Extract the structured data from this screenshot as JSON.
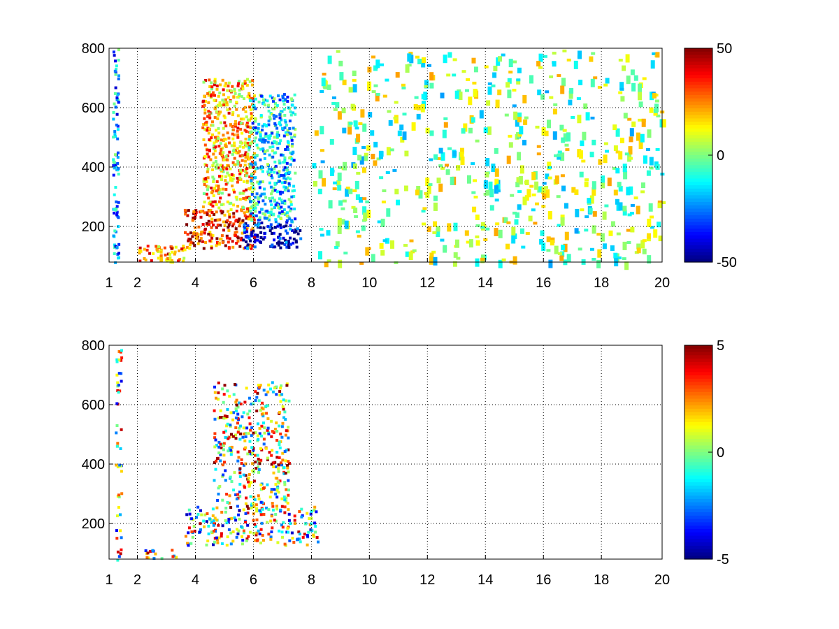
{
  "chart_data": [
    {
      "type": "heatmap",
      "title": "",
      "xlabel": "",
      "ylabel": "",
      "xlim": [
        1,
        20
      ],
      "ylim": [
        80,
        800
      ],
      "xticks": [
        1,
        2,
        4,
        6,
        8,
        10,
        12,
        14,
        16,
        18,
        20
      ],
      "xticklabels": [
        "1",
        "2",
        "4",
        "6",
        "8",
        "10",
        "12",
        "14",
        "16",
        "18",
        "20"
      ],
      "xscale": "log-like (1 and 2 compressed at left)",
      "yticks": [
        200,
        400,
        600,
        800
      ],
      "yticklabels": [
        "200",
        "400",
        "600",
        "800"
      ],
      "grid": true,
      "colormap": "jet",
      "clim": [
        -50,
        50
      ],
      "colorbar": {
        "ticks": [
          50,
          0,
          -50
        ],
        "ticklabels": [
          "50",
          "0",
          "-50"
        ]
      },
      "features": [
        {
          "x_range": [
            1.1,
            1.3
          ],
          "y_range": [
            80,
            800
          ],
          "value": -20,
          "note": "vertical cyan streaks"
        },
        {
          "x_range": [
            2.0,
            3.6
          ],
          "y_range": [
            80,
            140
          ],
          "value": 25,
          "note": "rising diagonal band"
        },
        {
          "x_range": [
            3.6,
            6.0
          ],
          "y_range": [
            130,
            260
          ],
          "value": 35,
          "note": "strong positive band"
        },
        {
          "x_range": [
            4.2,
            6.0
          ],
          "y_range": [
            250,
            700
          ],
          "value": 20,
          "note": "positive lobe"
        },
        {
          "x_range": [
            5.6,
            7.6
          ],
          "y_range": [
            130,
            220
          ],
          "value": -40,
          "note": "strong negative band"
        },
        {
          "x_range": [
            5.8,
            7.4
          ],
          "y_range": [
            220,
            650
          ],
          "value": -15,
          "note": "negative lobe"
        },
        {
          "x_range": [
            8.0,
            20.0
          ],
          "y_range": [
            80,
            800
          ],
          "value": 0,
          "note": "sparse near-zero scatter"
        }
      ]
    },
    {
      "type": "heatmap",
      "title": "",
      "xlabel": "",
      "ylabel": "",
      "xlim": [
        1,
        20
      ],
      "ylim": [
        80,
        800
      ],
      "xticks": [
        1,
        2,
        4,
        6,
        8,
        10,
        12,
        14,
        16,
        18,
        20
      ],
      "xticklabels": [
        "1",
        "2",
        "4",
        "6",
        "8",
        "10",
        "12",
        "14",
        "16",
        "18",
        "20"
      ],
      "xscale": "log-like (1 and 2 compressed at left)",
      "yticks": [
        200,
        400,
        600,
        800
      ],
      "yticklabels": [
        "200",
        "400",
        "600",
        "800"
      ],
      "grid": true,
      "colormap": "jet",
      "clim": [
        -5,
        5
      ],
      "colorbar": {
        "ticks": [
          5,
          0,
          -5
        ],
        "ticklabels": [
          "5",
          "0",
          "-5"
        ]
      },
      "features": [
        {
          "x_range": [
            1.2,
            1.4
          ],
          "y_range": [
            80,
            790
          ],
          "value": 0,
          "note": "thin mixed vertical lines"
        },
        {
          "x_range": [
            2.2,
            3.4
          ],
          "y_range": [
            85,
            120
          ],
          "value": 0.5,
          "note": "faint green diagonal"
        },
        {
          "x_range": [
            3.6,
            8.2
          ],
          "y_range": [
            130,
            260
          ],
          "value": 0,
          "note": "noisy mixed band"
        },
        {
          "x_range": [
            4.6,
            7.2
          ],
          "y_range": [
            250,
            680
          ],
          "value": 1,
          "note": "noisy mixed lobe"
        }
      ]
    }
  ]
}
